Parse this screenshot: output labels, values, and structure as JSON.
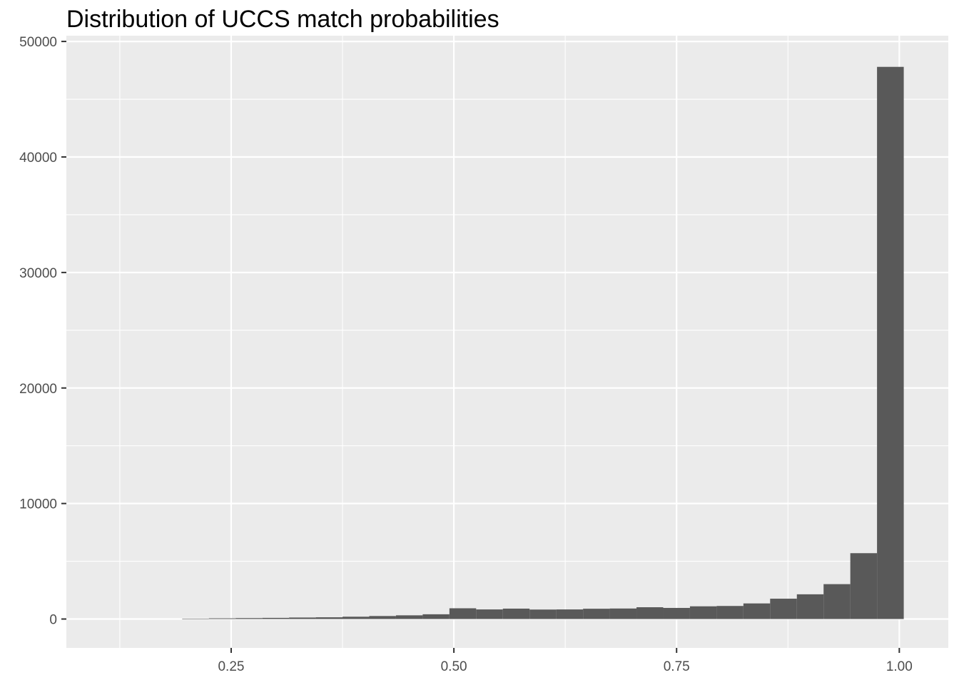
{
  "chart_data": {
    "type": "bar",
    "title": "Distribution of UCCS match probabilities",
    "xlabel": "",
    "ylabel": "",
    "x_ticks": [
      "0.25",
      "0.50",
      "0.75",
      "1.00"
    ],
    "y_ticks": [
      "0",
      "10000",
      "20000",
      "30000",
      "40000",
      "50000"
    ],
    "xlim": [
      0.065,
      1.055
    ],
    "ylim": [
      -2500,
      50500
    ],
    "bin_width": 0.03,
    "bins": [
      {
        "x0": 0.195,
        "x1": 0.225,
        "count": 30
      },
      {
        "x0": 0.225,
        "x1": 0.255,
        "count": 60
      },
      {
        "x0": 0.255,
        "x1": 0.285,
        "count": 80
      },
      {
        "x0": 0.285,
        "x1": 0.315,
        "count": 100
      },
      {
        "x0": 0.315,
        "x1": 0.345,
        "count": 130
      },
      {
        "x0": 0.345,
        "x1": 0.375,
        "count": 150
      },
      {
        "x0": 0.375,
        "x1": 0.405,
        "count": 200
      },
      {
        "x0": 0.405,
        "x1": 0.435,
        "count": 260
      },
      {
        "x0": 0.435,
        "x1": 0.465,
        "count": 320
      },
      {
        "x0": 0.465,
        "x1": 0.495,
        "count": 410
      },
      {
        "x0": 0.495,
        "x1": 0.525,
        "count": 930
      },
      {
        "x0": 0.525,
        "x1": 0.555,
        "count": 830
      },
      {
        "x0": 0.555,
        "x1": 0.585,
        "count": 900
      },
      {
        "x0": 0.585,
        "x1": 0.615,
        "count": 820
      },
      {
        "x0": 0.615,
        "x1": 0.645,
        "count": 830
      },
      {
        "x0": 0.645,
        "x1": 0.675,
        "count": 890
      },
      {
        "x0": 0.675,
        "x1": 0.705,
        "count": 910
      },
      {
        "x0": 0.705,
        "x1": 0.735,
        "count": 1020
      },
      {
        "x0": 0.735,
        "x1": 0.765,
        "count": 960
      },
      {
        "x0": 0.765,
        "x1": 0.795,
        "count": 1100
      },
      {
        "x0": 0.795,
        "x1": 0.825,
        "count": 1130
      },
      {
        "x0": 0.825,
        "x1": 0.855,
        "count": 1350
      },
      {
        "x0": 0.855,
        "x1": 0.885,
        "count": 1760
      },
      {
        "x0": 0.885,
        "x1": 0.915,
        "count": 2140
      },
      {
        "x0": 0.915,
        "x1": 0.945,
        "count": 3020
      },
      {
        "x0": 0.945,
        "x1": 0.975,
        "count": 5700
      },
      {
        "x0": 0.975,
        "x1": 1.005,
        "count": 47800
      }
    ],
    "grid": true,
    "panel_background": "#ebebeb",
    "bar_color": "#595959",
    "gridline_color": "#ffffff"
  }
}
